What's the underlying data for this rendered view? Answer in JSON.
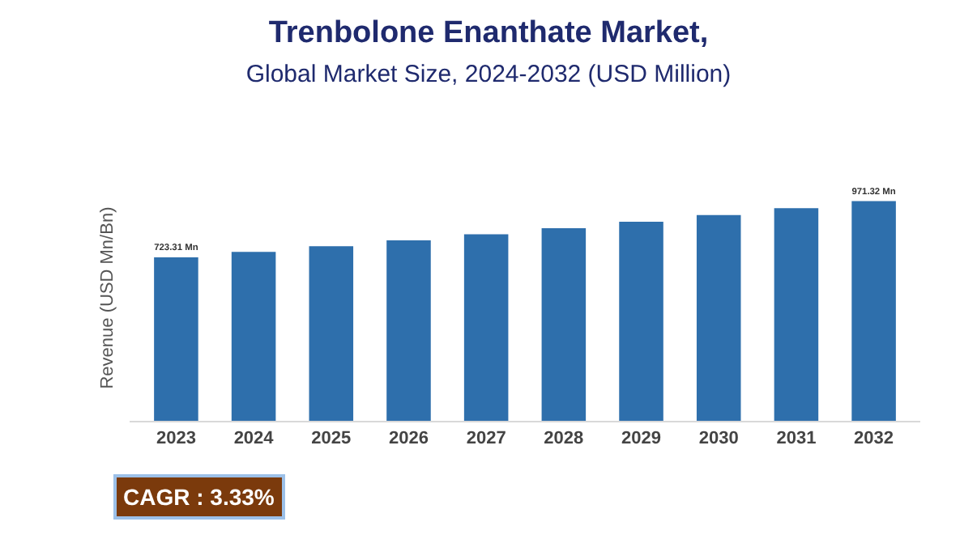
{
  "chart_data": {
    "type": "bar",
    "title": "Trenbolone Enanthate Market,",
    "subtitle": "Global Market Size, 2024-2032 (USD Million)",
    "ylabel": "Revenue (USD Mn/Bn)",
    "categories": [
      "2023",
      "2024",
      "2025",
      "2026",
      "2027",
      "2028",
      "2029",
      "2030",
      "2031",
      "2032"
    ],
    "values": [
      723.31,
      747,
      772,
      798,
      825,
      852,
      880,
      910,
      940,
      971.32
    ],
    "value_labels": [
      "723.31 Mn",
      null,
      null,
      null,
      null,
      null,
      null,
      null,
      null,
      "971.32 Mn"
    ],
    "color": "#2e6fac",
    "annotations": [
      "CAGR : 3.33%"
    ]
  }
}
